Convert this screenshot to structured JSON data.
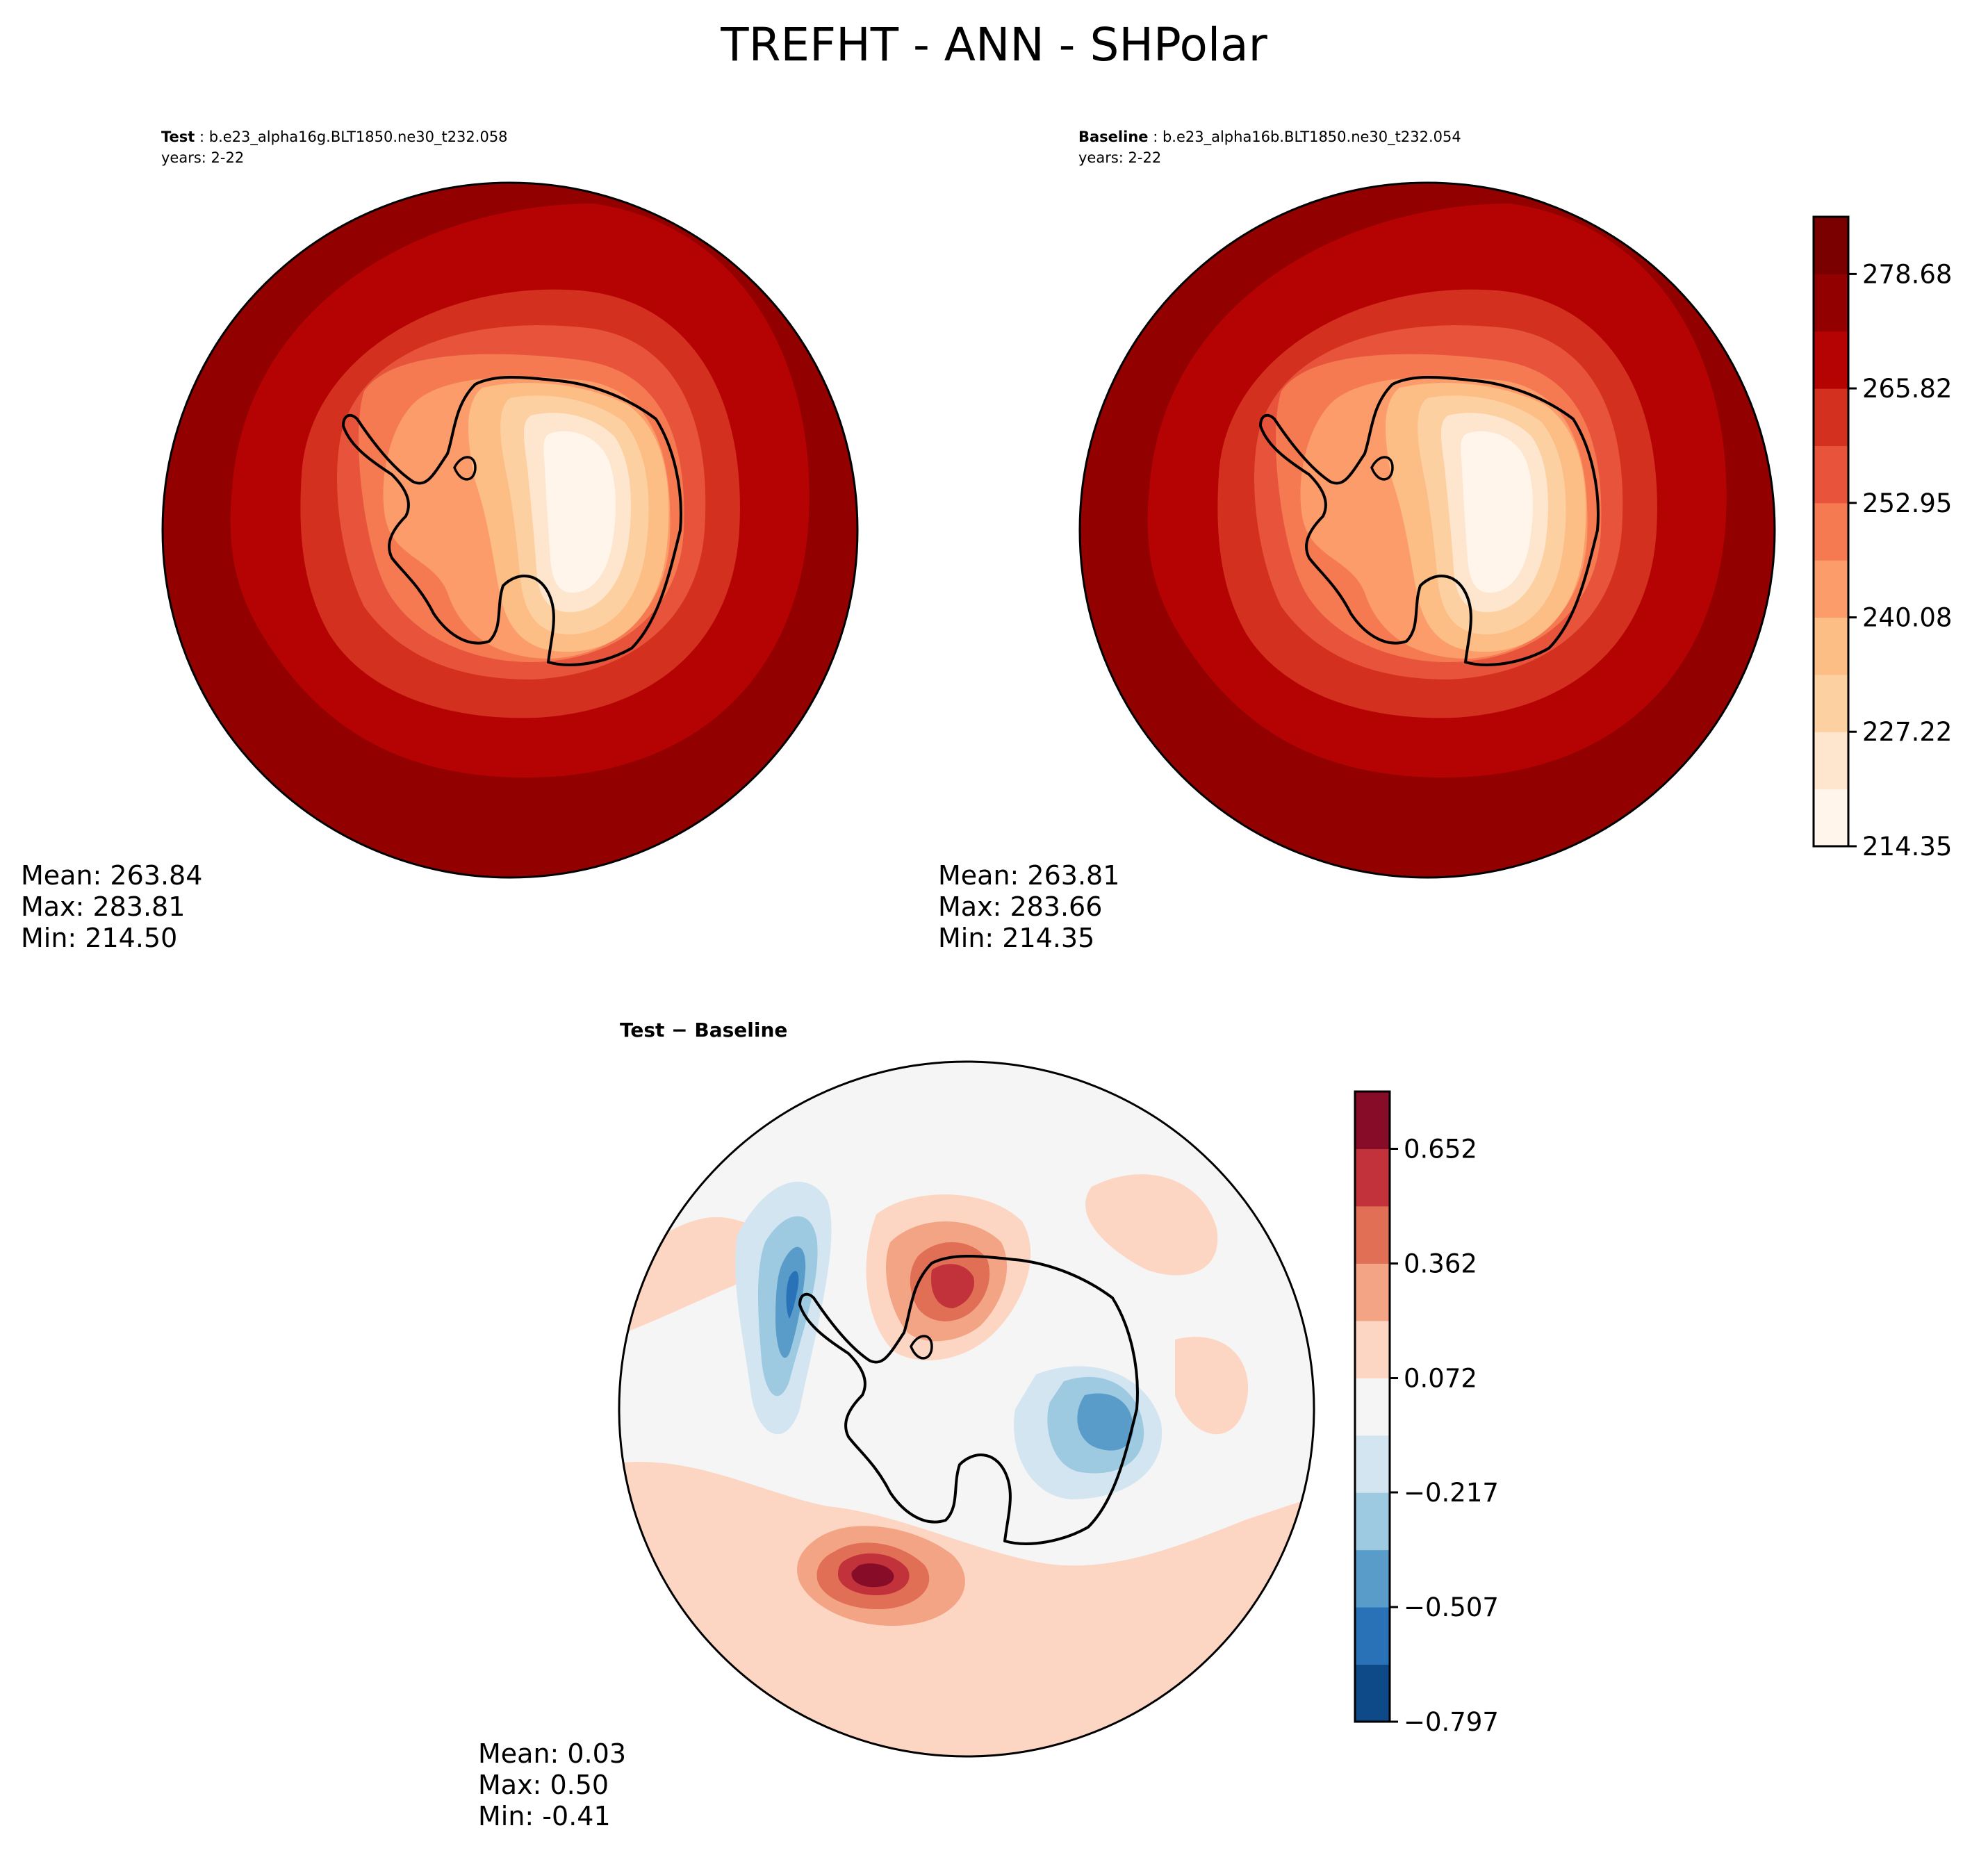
{
  "figure": {
    "suptitle": "TREFHT - ANN - SHPolar"
  },
  "panels": {
    "test": {
      "case_label": "Test",
      "case_name": "b.e23_alpha16g.BLT1850.ne30_t232.058",
      "years": "years: 2-22",
      "stats": {
        "mean": "Mean: 263.84",
        "max": "Max: 283.81",
        "min": "Min: 214.50"
      }
    },
    "baseline": {
      "case_label": "Baseline",
      "case_name": "b.e23_alpha16b.BLT1850.ne30_t232.054",
      "years": "years: 2-22",
      "stats": {
        "mean": "Mean: 263.81",
        "max": "Max: 283.66",
        "min": "Min: 214.35"
      }
    },
    "difference": {
      "title": "Test − Baseline",
      "stats": {
        "mean": "Mean:  0.03",
        "max": "Max:  0.50",
        "min": "Min: -0.41"
      }
    }
  },
  "chart_data": [
    {
      "type": "heatmap",
      "panel": "test",
      "projection": "south-polar-stereographic",
      "levels": [
        214.35,
        220.785,
        227.22,
        233.65,
        240.08,
        246.515,
        252.95,
        259.385,
        265.82,
        272.25,
        278.68,
        285.115
      ],
      "mean": 263.84,
      "max": 283.81,
      "min": 214.5
    },
    {
      "type": "heatmap",
      "panel": "baseline",
      "projection": "south-polar-stereographic",
      "levels": [
        214.35,
        220.785,
        227.22,
        233.65,
        240.08,
        246.515,
        252.95,
        259.385,
        265.82,
        272.25,
        278.68,
        285.115
      ],
      "mean": 263.81,
      "max": 283.66,
      "min": 214.35
    },
    {
      "type": "heatmap",
      "panel": "difference",
      "projection": "south-polar-stereographic",
      "levels": [
        -0.797,
        -0.652,
        -0.507,
        -0.362,
        -0.217,
        -0.072,
        0.072,
        0.217,
        0.362,
        0.507,
        0.652,
        0.797
      ],
      "mean": 0.03,
      "max": 0.5,
      "min": -0.41
    }
  ],
  "colorbars": {
    "absolute": {
      "colors": [
        "#fff5eb",
        "#fee6ce",
        "#fdd0a2",
        "#fdbe85",
        "#fc9c6b",
        "#f57a52",
        "#e8533c",
        "#d3301f",
        "#b50303",
        "#920000",
        "#7a0000"
      ],
      "tick_labels": [
        "214.35",
        "227.22",
        "240.08",
        "252.95",
        "265.82",
        "278.68"
      ]
    },
    "difference": {
      "colors": [
        "#0d4a87",
        "#2a72b8",
        "#5a9cc9",
        "#9dc9e1",
        "#d3e5f1",
        "#f5f5f5",
        "#fcd6c3",
        "#f3a484",
        "#e06f55",
        "#c2323a",
        "#870c27"
      ],
      "tick_labels": [
        "−0.797",
        "−0.507",
        "−0.217",
        "0.072",
        "0.362",
        "0.652"
      ]
    }
  }
}
